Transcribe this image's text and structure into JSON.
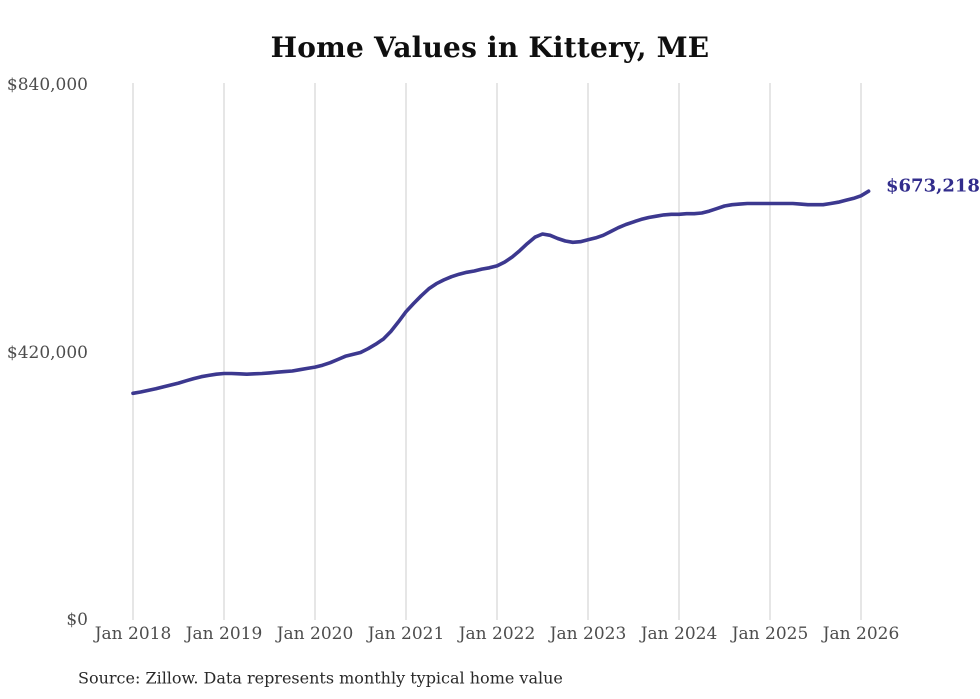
{
  "title": "Home Values in Kittery, ME",
  "end_label": "$673,218",
  "source": "Source: Zillow. Data represents monthly typical home value",
  "colors": {
    "line": "#3c388f",
    "end_label": "#322d8c",
    "gridline": "#cccccc",
    "axis_text": "#4d4d4d",
    "title_text": "#0f0f0f",
    "source_text": "#2a2a2a"
  },
  "chart_data": {
    "type": "line",
    "title": "Home Values in Kittery, ME",
    "xlabel": "",
    "ylabel": "",
    "x_tick_labels": [
      "Jan 2018",
      "Jan 2019",
      "Jan 2020",
      "Jan 2021",
      "Jan 2022",
      "Jan 2023",
      "Jan 2024",
      "Jan 2025",
      "Jan 2026"
    ],
    "y_tick_labels": [
      "$0",
      "$420,000",
      "$840,000"
    ],
    "y_ticks": [
      0,
      420000,
      840000
    ],
    "ylim": [
      0,
      840000
    ],
    "grid": "vertical-only",
    "legend": "none",
    "x_start": "Jan 2018",
    "x_interval": "month",
    "final_value": 673218,
    "final_value_label": "$673,218",
    "series": [
      {
        "name": "Monthly typical home value",
        "values": [
          356000,
          358000,
          360500,
          363000,
          366000,
          369000,
          372000,
          375500,
          379000,
          382000,
          384000,
          386000,
          387000,
          387000,
          386500,
          386000,
          386500,
          387000,
          388000,
          389000,
          390000,
          391000,
          393000,
          395000,
          397000,
          400000,
          404000,
          409000,
          414000,
          417000,
          420000,
          426000,
          433000,
          441000,
          453000,
          468000,
          484000,
          497000,
          509000,
          520000,
          528000,
          534000,
          539000,
          543000,
          546000,
          548000,
          551000,
          553000,
          556000,
          562000,
          570000,
          580000,
          591000,
          601000,
          606000,
          604000,
          599000,
          595000,
          593000,
          594000,
          597000,
          600000,
          604000,
          610000,
          616000,
          621000,
          625000,
          629000,
          632000,
          634000,
          636000,
          637000,
          637000,
          638000,
          638000,
          639000,
          642000,
          646000,
          650000,
          652000,
          653000,
          654000,
          654000,
          654000,
          654000,
          654000,
          654000,
          654000,
          653000,
          652000,
          652000,
          652000,
          654000,
          656000,
          659000,
          662000,
          666000,
          673218
        ]
      }
    ]
  }
}
